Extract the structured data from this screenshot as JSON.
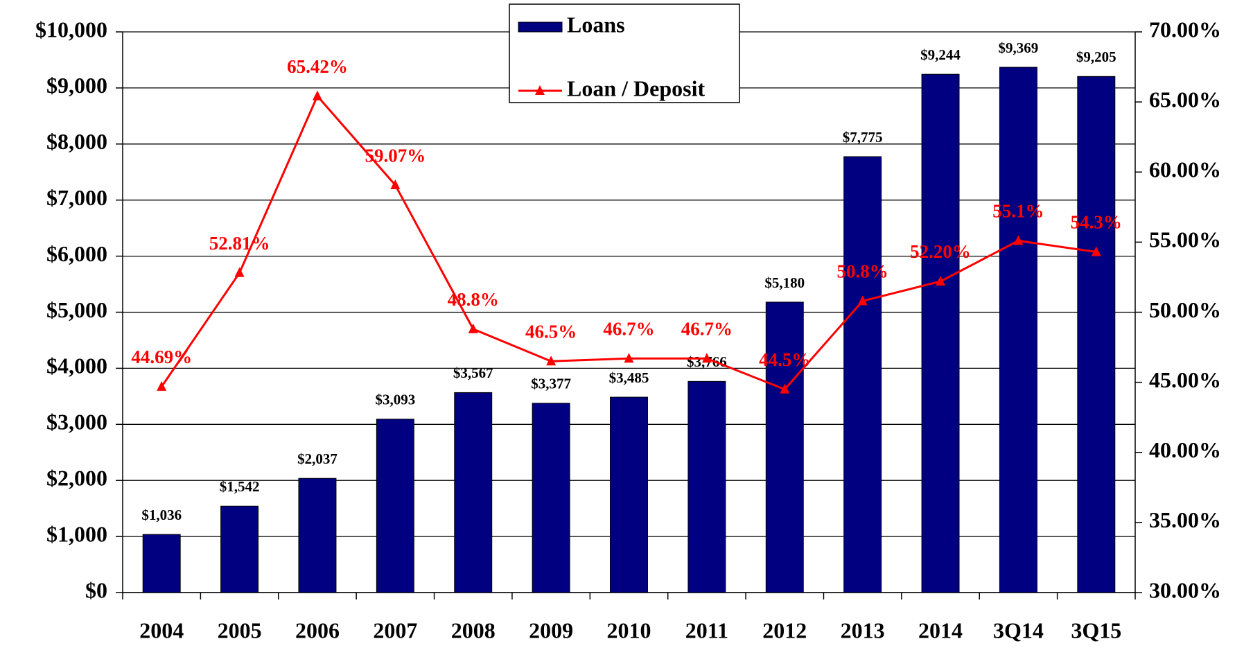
{
  "chart_data": {
    "type": "bar",
    "categories": [
      "2004",
      "2005",
      "2006",
      "2007",
      "2008",
      "2009",
      "2010",
      "2011",
      "2012",
      "2013",
      "2014",
      "3Q14",
      "3Q15"
    ],
    "series": [
      {
        "name": "Loans",
        "color": "#000080",
        "type": "bar",
        "values": [
          1036,
          1542,
          2037,
          3093,
          3567,
          3377,
          3485,
          3766,
          5180,
          7775,
          9244,
          9369,
          9205
        ],
        "value_labels": [
          "$1,036",
          "$1,542",
          "$2,037",
          "$3,093",
          "$3,567",
          "$3,377",
          "$3,485",
          "$3,766",
          "$5,180",
          "$7,775",
          "$9,244",
          "$9,369",
          "$9,205"
        ]
      },
      {
        "name": "Loan / Deposit",
        "color": "#ff0000",
        "type": "line",
        "axis": "y2",
        "values": [
          44.69,
          52.81,
          65.42,
          59.07,
          48.8,
          46.5,
          46.7,
          46.7,
          44.5,
          50.8,
          52.2,
          55.1,
          54.3
        ],
        "value_labels": [
          "44.69%",
          "52.81%",
          "65.42%",
          "59.07%",
          "48.8%",
          "46.5%",
          "46.7%",
          "46.7%",
          "44.5%",
          "50.8%",
          "52.20%",
          "55.1%",
          "54.3%"
        ]
      }
    ],
    "ylim": [
      0,
      10000
    ],
    "yticks": [
      {
        "value": 0,
        "label": "$0"
      },
      {
        "value": 1000,
        "label": "$1,000"
      },
      {
        "value": 2000,
        "label": "$2,000"
      },
      {
        "value": 3000,
        "label": "$3,000"
      },
      {
        "value": 4000,
        "label": "$4,000"
      },
      {
        "value": 5000,
        "label": "$5,000"
      },
      {
        "value": 6000,
        "label": "$6,000"
      },
      {
        "value": 7000,
        "label": "$7,000"
      },
      {
        "value": 8000,
        "label": "$8,000"
      },
      {
        "value": 9000,
        "label": "$9,000"
      },
      {
        "value": 10000,
        "label": "$10,000"
      }
    ],
    "y2lim": [
      30,
      70
    ],
    "y2ticks": [
      {
        "value": 30,
        "label": "30.00%"
      },
      {
        "value": 35,
        "label": "35.00%"
      },
      {
        "value": 40,
        "label": "40.00%"
      },
      {
        "value": 45,
        "label": "45.00%"
      },
      {
        "value": 50,
        "label": "50.00%"
      },
      {
        "value": 55,
        "label": "55.00%"
      },
      {
        "value": 60,
        "label": "60.00%"
      },
      {
        "value": 65,
        "label": "65.00%"
      },
      {
        "value": 70,
        "label": "70.00%"
      }
    ],
    "grid": true,
    "legend": "top"
  }
}
